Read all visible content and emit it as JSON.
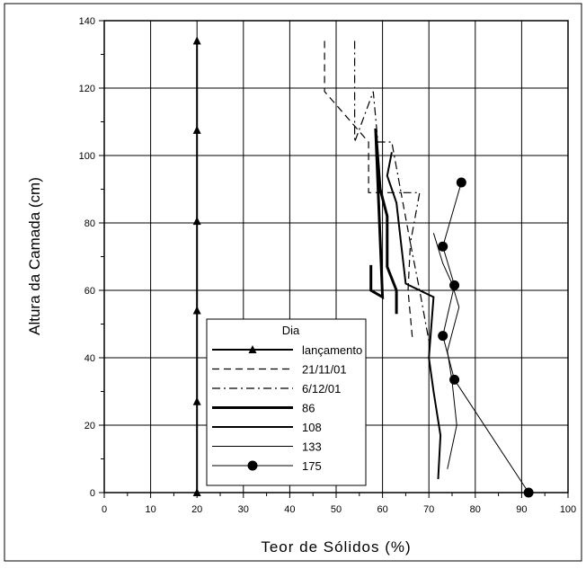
{
  "chart_data": {
    "type": "line",
    "xlabel": "Teor de Sólidos (%)",
    "ylabel": "Altura da Camada (cm)",
    "xlim": [
      0,
      100
    ],
    "ylim": [
      0,
      140
    ],
    "xticks": [
      0,
      10,
      20,
      30,
      40,
      50,
      60,
      70,
      80,
      90,
      100
    ],
    "yticks": [
      0,
      20,
      40,
      60,
      80,
      100,
      120,
      140
    ],
    "grid": true,
    "legend": {
      "title": "Dia",
      "placement": "bottom-center"
    },
    "series": [
      {
        "name": "lançamento",
        "style": "solid-triangle",
        "points": [
          [
            20,
            0
          ],
          [
            20,
            27
          ],
          [
            20,
            54
          ],
          [
            20,
            80.5
          ],
          [
            20,
            107.5
          ],
          [
            20,
            134
          ]
        ]
      },
      {
        "name": "21/11/01",
        "style": "dashed",
        "points": [
          [
            47.5,
            134
          ],
          [
            47.5,
            119
          ],
          [
            57,
            104
          ],
          [
            57,
            89
          ],
          [
            64,
            89
          ],
          [
            66,
            74
          ],
          [
            65.5,
            60
          ],
          [
            66.5,
            45
          ]
        ]
      },
      {
        "name": "6/12/01",
        "style": "dash-dot",
        "points": [
          [
            54,
            134
          ],
          [
            54,
            104
          ],
          [
            58,
            119
          ],
          [
            59,
            104
          ],
          [
            62,
            104
          ],
          [
            64,
            89
          ],
          [
            68,
            89
          ],
          [
            66,
            74
          ],
          [
            68,
            60
          ],
          [
            70,
            45
          ]
        ]
      },
      {
        "name": "86",
        "style": "thick",
        "points": [
          [
            57.5,
            67.5
          ],
          [
            57.5,
            60
          ],
          [
            60,
            58
          ],
          [
            58.5,
            108
          ],
          [
            59.5,
            90
          ],
          [
            61,
            82
          ],
          [
            61,
            67
          ],
          [
            63,
            60
          ],
          [
            63,
            53
          ]
        ]
      },
      {
        "name": "108",
        "style": "medium",
        "points": [
          [
            62,
            101
          ],
          [
            61,
            94
          ],
          [
            63,
            86
          ],
          [
            64,
            74
          ],
          [
            65,
            62
          ],
          [
            71,
            58
          ],
          [
            70,
            40
          ],
          [
            71,
            30
          ],
          [
            72.5,
            17
          ],
          [
            72,
            4
          ]
        ]
      },
      {
        "name": "133",
        "style": "thin",
        "points": [
          [
            71,
            77
          ],
          [
            73,
            68
          ],
          [
            75,
            62
          ],
          [
            76.5,
            55
          ],
          [
            74,
            42
          ],
          [
            75,
            33
          ],
          [
            76,
            20
          ],
          [
            74,
            7
          ]
        ]
      },
      {
        "name": "175",
        "style": "solid-circle",
        "points": [
          [
            77,
            92
          ],
          [
            73,
            73
          ],
          [
            75.5,
            61.5
          ],
          [
            73,
            46.5
          ],
          [
            75.5,
            33.5
          ],
          [
            91.5,
            0
          ]
        ]
      }
    ]
  }
}
